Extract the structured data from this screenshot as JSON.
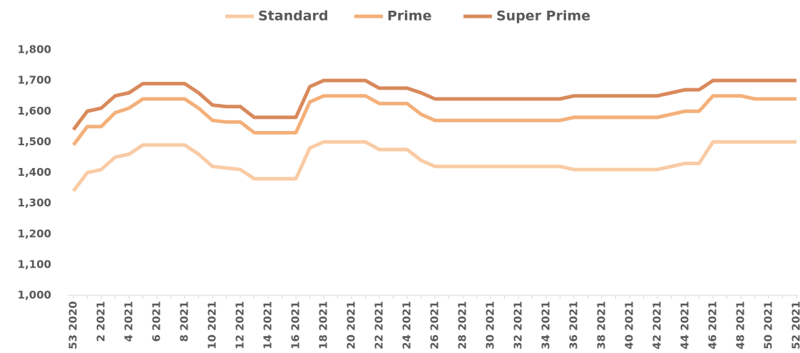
{
  "chart_data": {
    "type": "line",
    "categories": [
      "53 2020",
      null,
      "2 2021",
      null,
      "4 2021",
      null,
      "6 2021",
      null,
      "8 2021",
      null,
      "10 2021",
      null,
      "12 2021",
      null,
      "14 2021",
      null,
      "16 2021",
      null,
      "18 2021",
      null,
      "20 2021",
      null,
      "22 2021",
      null,
      "24 2021",
      null,
      "26 2021",
      null,
      "28 2021",
      null,
      "30 2021",
      null,
      "32 2021",
      null,
      "34 2021",
      null,
      "36 2021",
      null,
      "38 2021",
      null,
      "40 2021",
      null,
      "42 2021",
      null,
      "44 2021",
      null,
      "46 2021",
      null,
      "48 2021",
      null,
      "50 2021",
      null,
      "52 2021"
    ],
    "series": [
      {
        "name": "Standard",
        "color": "#f9cba5",
        "values": [
          1340,
          1400,
          1410,
          1450,
          1460,
          1490,
          1490,
          1490,
          1490,
          1460,
          1420,
          1415,
          1410,
          1380,
          1380,
          1380,
          1380,
          1480,
          1500,
          1500,
          1500,
          1500,
          1475,
          1475,
          1475,
          1440,
          1420,
          1420,
          1420,
          1420,
          1420,
          1420,
          1420,
          1420,
          1420,
          1420,
          1410,
          1410,
          1410,
          1410,
          1410,
          1410,
          1410,
          1420,
          1430,
          1430,
          1500,
          1500,
          1500,
          1500,
          1500,
          1500,
          1500
        ]
      },
      {
        "name": "Prime",
        "color": "#f4b07a",
        "values": [
          1490,
          1550,
          1550,
          1595,
          1610,
          1640,
          1640,
          1640,
          1640,
          1610,
          1570,
          1565,
          1565,
          1530,
          1530,
          1530,
          1530,
          1630,
          1650,
          1650,
          1650,
          1650,
          1625,
          1625,
          1625,
          1590,
          1570,
          1570,
          1570,
          1570,
          1570,
          1570,
          1570,
          1570,
          1570,
          1570,
          1580,
          1580,
          1580,
          1580,
          1580,
          1580,
          1580,
          1590,
          1600,
          1600,
          1650,
          1650,
          1650,
          1640,
          1640,
          1640,
          1640
        ]
      },
      {
        "name": "Super Prime",
        "color": "#d9895b",
        "values": [
          1540,
          1600,
          1610,
          1650,
          1660,
          1690,
          1690,
          1690,
          1690,
          1660,
          1620,
          1615,
          1615,
          1580,
          1580,
          1580,
          1580,
          1680,
          1700,
          1700,
          1700,
          1700,
          1675,
          1675,
          1675,
          1660,
          1640,
          1640,
          1640,
          1640,
          1640,
          1640,
          1640,
          1640,
          1640,
          1640,
          1650,
          1650,
          1650,
          1650,
          1650,
          1650,
          1650,
          1660,
          1670,
          1670,
          1700,
          1700,
          1700,
          1700,
          1700,
          1700,
          1700
        ]
      }
    ],
    "ylim": [
      1000,
      1800
    ],
    "yticks": [
      {
        "value": 1000,
        "label": "1,000"
      },
      {
        "value": 1100,
        "label": "1,100"
      },
      {
        "value": 1200,
        "label": "1,200"
      },
      {
        "value": 1300,
        "label": "1,300"
      },
      {
        "value": 1400,
        "label": "1,400"
      },
      {
        "value": 1500,
        "label": "1,500"
      },
      {
        "value": 1600,
        "label": "1,600"
      },
      {
        "value": 1700,
        "label": "1,700"
      },
      {
        "value": 1800,
        "label": "1,800"
      }
    ],
    "legend": "top"
  }
}
